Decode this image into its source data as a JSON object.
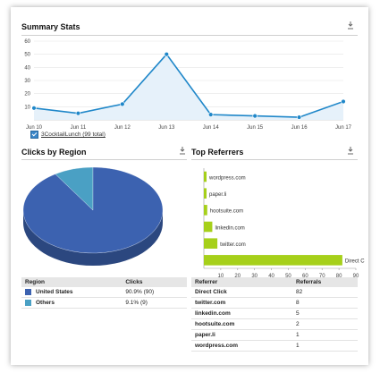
{
  "summary": {
    "title": "Summary Stats",
    "legend_label": "3CocktailLunch (99 total)",
    "series_color": "#1f87c9",
    "fill_color": "#e6f1fa"
  },
  "chart_data": [
    {
      "type": "area",
      "title": "Summary Stats",
      "categories": [
        "Jun 10",
        "Jun 11",
        "Jun 12",
        "Jun 13",
        "Jun 14",
        "Jun 15",
        "Jun 16",
        "Jun 17"
      ],
      "series": [
        {
          "name": "3CocktailLunch (99 total)",
          "values": [
            9,
            5,
            12,
            50,
            4,
            3,
            2,
            14
          ]
        }
      ],
      "yticks": [
        "10",
        "20",
        "30",
        "40",
        "50",
        "60"
      ],
      "ylim": [
        0,
        60
      ],
      "grid": true
    },
    {
      "type": "pie",
      "title": "Clicks by Region",
      "labels": [
        "United States",
        "Others"
      ],
      "values": [
        90,
        9
      ],
      "colors": [
        "#3c62b0",
        "#4aa0c4"
      ]
    },
    {
      "type": "bar",
      "title": "Top Referrers",
      "orientation": "horizontal",
      "categories": [
        "wordpress.com",
        "paper.li",
        "hootsuite.com",
        "linkedin.com",
        "twitter.com",
        "Direct C"
      ],
      "values": [
        1,
        1,
        2,
        5,
        8,
        82
      ],
      "xticks": [
        "10",
        "20",
        "30",
        "40",
        "50",
        "60",
        "70",
        "80",
        "90"
      ],
      "xlim": [
        0,
        90
      ],
      "color": "#a6d01a"
    }
  ],
  "region": {
    "title": "Clicks by Region",
    "headers": [
      "Region",
      "Clicks"
    ],
    "rows": [
      {
        "name": "United States",
        "clicks": "90.9% (90)",
        "color": "#3c62b0"
      },
      {
        "name": "Others",
        "clicks": "9.1% (9)",
        "color": "#4aa0c4"
      }
    ]
  },
  "referrers": {
    "title": "Top Referrers",
    "headers": [
      "Referrer",
      "Referrals"
    ],
    "rows": [
      {
        "name": "Direct Click",
        "count": "82"
      },
      {
        "name": "twitter.com",
        "count": "8"
      },
      {
        "name": "linkedin.com",
        "count": "5"
      },
      {
        "name": "hootsuite.com",
        "count": "2"
      },
      {
        "name": "paper.li",
        "count": "1"
      },
      {
        "name": "wordpress.com",
        "count": "1"
      }
    ]
  }
}
